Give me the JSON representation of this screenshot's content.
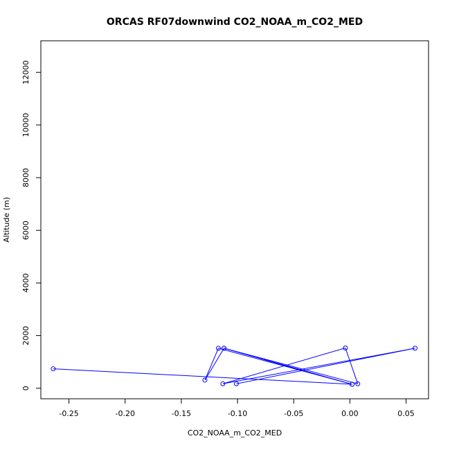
{
  "chart_data": {
    "type": "scatter",
    "title": "ORCAS RF07downwind CO2_NOAA_m_CO2_MED",
    "xlabel": "CO2_NOAA_m_CO2_MED",
    "ylabel": "Altitude (m)",
    "xlim": [
      -0.275,
      0.07
    ],
    "ylim": [
      -400,
      13200
    ],
    "x_ticks": [
      -0.25,
      -0.2,
      -0.15,
      -0.1,
      -0.05,
      0.0,
      0.05
    ],
    "x_tick_labels": [
      "-0.25",
      "-0.20",
      "-0.15",
      "-0.10",
      "-0.05",
      "0.00",
      "0.05"
    ],
    "y_ticks": [
      0,
      2000,
      4000,
      6000,
      8000,
      10000,
      12000
    ],
    "y_tick_labels": [
      "0",
      "2000",
      "4000",
      "6000",
      "8000",
      "10000",
      "12000"
    ],
    "grid": false,
    "marker": "open-circle",
    "connected": true,
    "color": "#0000ff",
    "series": [
      {
        "points": [
          {
            "x": -0.264,
            "y": 740
          },
          {
            "x": 0.002,
            "y": 150
          },
          {
            "x": -0.112,
            "y": 1520
          },
          {
            "x": 0.002,
            "y": 150
          },
          {
            "x": -0.117,
            "y": 1520
          },
          {
            "x": -0.129,
            "y": 310
          },
          {
            "x": -0.112,
            "y": 1520
          },
          {
            "x": 0.007,
            "y": 170
          },
          {
            "x": -0.004,
            "y": 1530
          },
          {
            "x": -0.113,
            "y": 170
          },
          {
            "x": 0.058,
            "y": 1520
          },
          {
            "x": -0.101,
            "y": 170
          }
        ]
      }
    ]
  }
}
